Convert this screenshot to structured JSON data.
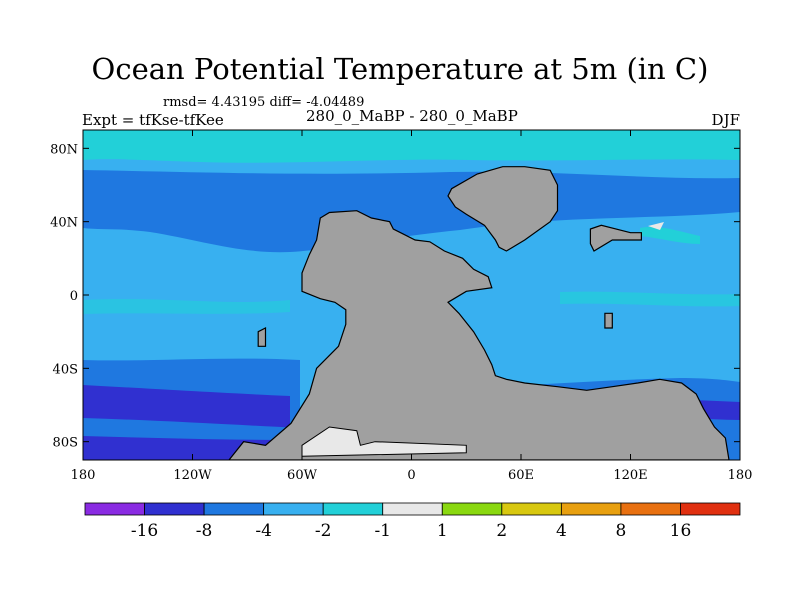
{
  "title": "Ocean Potential Temperature at 5m (in C)",
  "stats": "rmsd= 4.43195 diff= -4.04489",
  "expt_label": "Expt = tfKse-tfKee",
  "case_label": "280_0_MaBP - 280_0_MaBP",
  "season": "DJF",
  "map": {
    "lon_range": [
      -180,
      180
    ],
    "lat_range": [
      -90,
      90
    ],
    "y_ticks": [
      {
        "value": 80,
        "label": "80N"
      },
      {
        "value": 40,
        "label": "40N"
      },
      {
        "value": 0,
        "label": "0"
      },
      {
        "value": -40,
        "label": "40S"
      },
      {
        "value": -80,
        "label": "80S"
      }
    ],
    "x_ticks": [
      {
        "value": -180,
        "label": "180"
      },
      {
        "value": -120,
        "label": "120W"
      },
      {
        "value": -60,
        "label": "60W"
      },
      {
        "value": 0,
        "label": "0"
      },
      {
        "value": 60,
        "label": "60E"
      },
      {
        "value": 120,
        "label": "120E"
      },
      {
        "value": 180,
        "label": "180"
      }
    ],
    "land_color": "#a0a0a0",
    "continents": [
      {
        "name": "americas-africa-landmass",
        "lonlat": [
          [
            -50,
            42
          ],
          [
            -45,
            45
          ],
          [
            -30,
            46
          ],
          [
            -22,
            42
          ],
          [
            -12,
            40
          ],
          [
            -10,
            36
          ],
          [
            -6,
            34
          ],
          [
            2,
            30
          ],
          [
            10,
            29
          ],
          [
            18,
            24
          ],
          [
            28,
            20
          ],
          [
            34,
            14
          ],
          [
            42,
            10
          ],
          [
            44,
            4
          ],
          [
            30,
            2
          ],
          [
            20,
            -4
          ],
          [
            26,
            -10
          ],
          [
            34,
            -20
          ],
          [
            40,
            -30
          ],
          [
            44,
            -38
          ],
          [
            46,
            -44
          ],
          [
            52,
            -46
          ],
          [
            62,
            -48
          ],
          [
            80,
            -50
          ],
          [
            96,
            -52
          ],
          [
            110,
            -50
          ],
          [
            124,
            -48
          ],
          [
            136,
            -46
          ],
          [
            148,
            -48
          ],
          [
            156,
            -54
          ],
          [
            160,
            -62
          ],
          [
            166,
            -72
          ],
          [
            172,
            -78
          ],
          [
            174,
            -90
          ],
          [
            -100,
            -90
          ],
          [
            -92,
            -80
          ],
          [
            -80,
            -82
          ],
          [
            -66,
            -70
          ],
          [
            -56,
            -54
          ],
          [
            -52,
            -40
          ],
          [
            -40,
            -28
          ],
          [
            -36,
            -16
          ],
          [
            -36,
            -8
          ],
          [
            -42,
            -4
          ],
          [
            -50,
            -2
          ],
          [
            -60,
            2
          ],
          [
            -60,
            12
          ],
          [
            -56,
            22
          ],
          [
            -52,
            30
          ]
        ]
      },
      {
        "name": "north-landmass",
        "lonlat": [
          [
            22,
            58
          ],
          [
            36,
            66
          ],
          [
            50,
            70
          ],
          [
            62,
            70
          ],
          [
            76,
            68
          ],
          [
            80,
            60
          ],
          [
            80,
            46
          ],
          [
            76,
            40
          ],
          [
            62,
            30
          ],
          [
            52,
            24
          ],
          [
            48,
            26
          ],
          [
            46,
            30
          ],
          [
            40,
            38
          ],
          [
            30,
            44
          ],
          [
            24,
            48
          ],
          [
            20,
            54
          ]
        ]
      },
      {
        "name": "east-island-chain",
        "lonlat": [
          [
            98,
            36
          ],
          [
            104,
            38
          ],
          [
            120,
            34
          ],
          [
            126,
            34
          ],
          [
            126,
            30
          ],
          [
            110,
            30
          ],
          [
            100,
            24
          ],
          [
            98,
            28
          ]
        ]
      },
      {
        "name": "small-island-west",
        "lonlat": [
          [
            -84,
            -20
          ],
          [
            -80,
            -18
          ],
          [
            -80,
            -28
          ],
          [
            -84,
            -28
          ]
        ]
      },
      {
        "name": "small-island-east",
        "lonlat": [
          [
            106,
            -10
          ],
          [
            110,
            -10
          ],
          [
            110,
            -18
          ],
          [
            106,
            -18
          ]
        ]
      }
    ],
    "ice_shelf": {
      "name": "antarctic-ice",
      "lonlat": [
        [
          -60,
          -82
        ],
        [
          -45,
          -72
        ],
        [
          -30,
          -74
        ],
        [
          -28,
          -82
        ],
        [
          -20,
          -80
        ],
        [
          30,
          -82
        ],
        [
          30,
          -86
        ],
        [
          -60,
          -88
        ]
      ]
    }
  },
  "colorbar": {
    "colors": [
      "#8a2be2",
      "#3030d0",
      "#1f78e0",
      "#38b0f0",
      "#22d0d8",
      "#e8e8e8",
      "#8ad810",
      "#d8c810",
      "#e8a010",
      "#e87010",
      "#e03010"
    ],
    "labels": [
      "-16",
      "-8",
      "-4",
      "-2",
      "-1",
      "1",
      "2",
      "4",
      "8",
      "16"
    ]
  }
}
